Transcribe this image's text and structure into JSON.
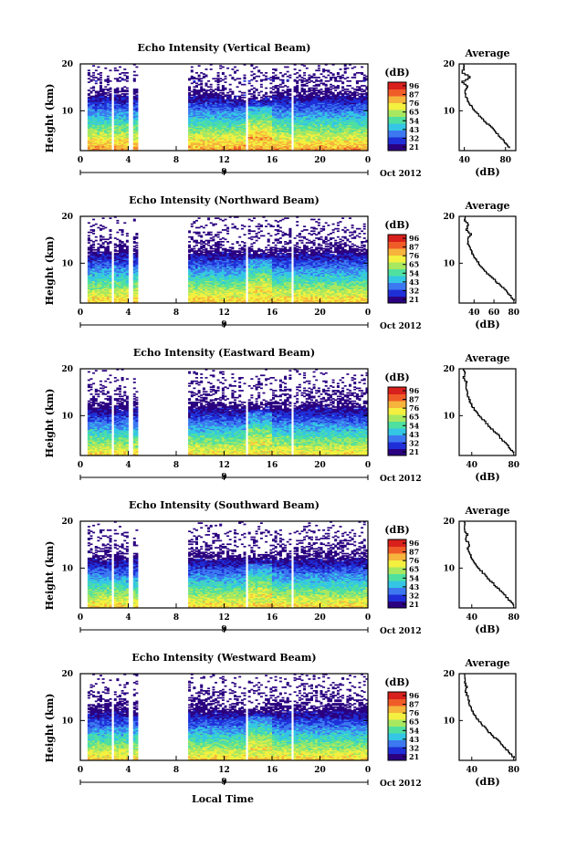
{
  "chart_data": {
    "type": "heatmap",
    "xlabel": "Local Time",
    "time_ticks": [
      "0",
      "4",
      "8",
      "12",
      "16",
      "20",
      "0"
    ],
    "date_ticks": [
      "9"
    ],
    "date_label": "Oct 2012",
    "xlim": [
      0,
      24
    ],
    "ylabel": "Height (km)",
    "ylim": [
      1.5,
      20
    ],
    "y_ticks": [
      "10",
      "20"
    ],
    "data_gaps_hours": [
      [
        0,
        0.6
      ],
      [
        2.6,
        2.8
      ],
      [
        4.0,
        4.4
      ],
      [
        4.9,
        9.0
      ],
      [
        13.7,
        13.9
      ],
      [
        17.6,
        17.8
      ]
    ],
    "colorbar": {
      "unit": "(dB)",
      "colors": [
        "#2a0080",
        "#1f2fd8",
        "#3c78f0",
        "#34c6e4",
        "#4fe0a0",
        "#a8e860",
        "#f3f040",
        "#f6b43c",
        "#f05c28",
        "#d8201c"
      ]
    },
    "panels": [
      {
        "title": "Echo Intensity (Vertical Beam)",
        "colorbar_ticks": [
          "96",
          "87",
          "76",
          "65",
          "54",
          "43",
          "32",
          "21"
        ],
        "profile": {
          "title": "Average",
          "xlabel": "(dB)",
          "x_ticks": [
            "40",
            "80"
          ],
          "xlim": [
            35,
            90
          ],
          "y_ticks": [
            "10",
            "20"
          ],
          "heights": [
            2,
            4,
            6,
            8,
            10,
            12,
            14,
            15,
            16,
            17,
            18,
            19,
            20
          ],
          "values": [
            84,
            76,
            68,
            58,
            50,
            43,
            40,
            44,
            38,
            46,
            38,
            40,
            39
          ]
        }
      },
      {
        "title": "Echo Intensity (Northward Beam)",
        "colorbar_ticks": [
          "96",
          "87",
          "76",
          "65",
          "54",
          "43",
          "32",
          "21"
        ],
        "profile": {
          "title": "Average",
          "xlabel": "(dB)",
          "x_ticks": [
            "40",
            "60",
            "80"
          ],
          "xlim": [
            25,
            82
          ],
          "y_ticks": [
            "10",
            "20"
          ],
          "heights": [
            2,
            4,
            6,
            8,
            10,
            12,
            14,
            15,
            16,
            17,
            18,
            19,
            20
          ],
          "values": [
            80,
            72,
            62,
            52,
            44,
            38,
            34,
            33,
            37,
            32,
            34,
            31,
            32
          ]
        }
      },
      {
        "title": "Echo Intensity (Eastward Beam)",
        "colorbar_ticks": [
          "96",
          "87",
          "76",
          "65",
          "54",
          "43",
          "32",
          "21"
        ],
        "profile": {
          "title": "Average",
          "xlabel": "(dB)",
          "x_ticks": [
            "40",
            "80"
          ],
          "xlim": [
            28,
            82
          ],
          "y_ticks": [
            "10",
            "20"
          ],
          "heights": [
            2,
            4,
            6,
            8,
            10,
            12,
            14,
            15,
            16,
            17,
            18,
            19,
            20
          ],
          "values": [
            80,
            72,
            64,
            55,
            47,
            40,
            36,
            36,
            34,
            35,
            32,
            34,
            32
          ]
        }
      },
      {
        "title": "Echo Intensity (Southward Beam)",
        "colorbar_ticks": [
          "96",
          "87",
          "76",
          "65",
          "54",
          "43",
          "32",
          "21"
        ],
        "profile": {
          "title": "Average",
          "xlabel": "(dB)",
          "x_ticks": [
            "40",
            "80"
          ],
          "xlim": [
            28,
            82
          ],
          "y_ticks": [
            "10",
            "20"
          ],
          "heights": [
            2,
            4,
            6,
            8,
            10,
            12,
            14,
            15,
            16,
            17,
            18,
            19,
            20
          ],
          "values": [
            80,
            72,
            63,
            54,
            46,
            40,
            36,
            38,
            34,
            36,
            33,
            34,
            32
          ]
        }
      },
      {
        "title": "Echo Intensity (Westward Beam)",
        "colorbar_ticks": [
          "96",
          "87",
          "76",
          "65",
          "54",
          "43",
          "32",
          "21"
        ],
        "profile": {
          "title": "Average",
          "xlabel": "(dB)",
          "x_ticks": [
            "40",
            "80"
          ],
          "xlim": [
            28,
            82
          ],
          "y_ticks": [
            "10",
            "20"
          ],
          "heights": [
            2,
            4,
            6,
            8,
            10,
            12,
            14,
            15,
            16,
            17,
            18,
            19,
            20
          ],
          "values": [
            80,
            72,
            63,
            54,
            46,
            40,
            37,
            36,
            34,
            35,
            33,
            34,
            32
          ]
        }
      }
    ]
  }
}
